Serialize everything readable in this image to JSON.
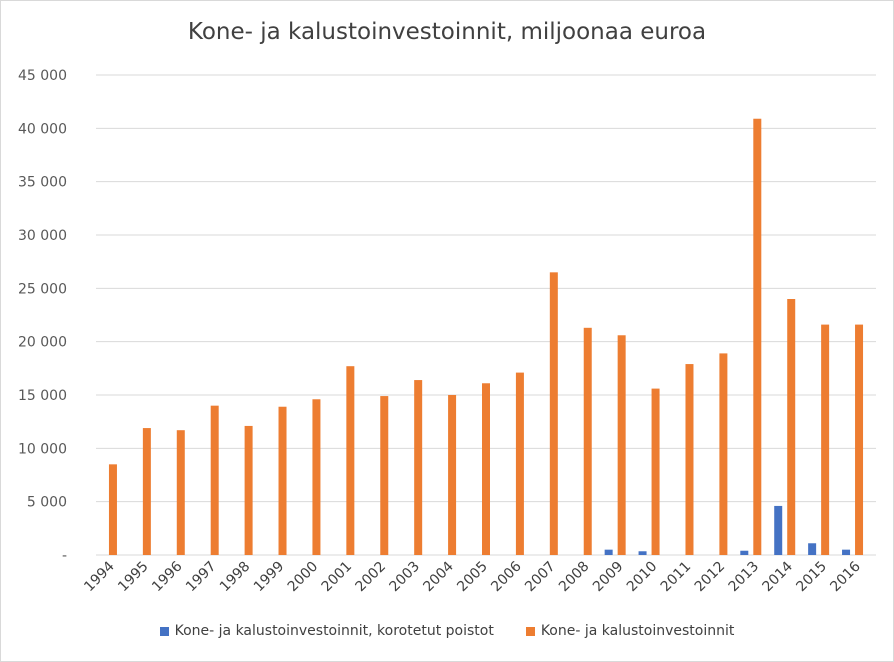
{
  "chart_data": {
    "type": "bar",
    "title": "Kone- ja kalustoinvestoinnit, miljoonaa euroa",
    "xlabel": "",
    "ylabel": "",
    "ylim": [
      0,
      45000
    ],
    "y_ticks": [
      0,
      5000,
      10000,
      15000,
      20000,
      25000,
      30000,
      35000,
      40000,
      45000
    ],
    "y_tick_labels": [
      "-",
      "5 000",
      "10 000",
      "15 000",
      "20 000",
      "25 000",
      "30 000",
      "35 000",
      "40 000",
      "45 000"
    ],
    "grid": true,
    "legend_position": "bottom",
    "categories": [
      "1994",
      "1995",
      "1996",
      "1997",
      "1998",
      "1999",
      "2000",
      "2001",
      "2002",
      "2003",
      "2004",
      "2005",
      "2006",
      "2007",
      "2008",
      "2009",
      "2010",
      "2011",
      "2012",
      "2013",
      "2014",
      "2015",
      "2016"
    ],
    "series": [
      {
        "name": "Kone- ja kalustoinvestoinnit, korotetut poistot",
        "color": "#4472c4",
        "values": [
          0,
          0,
          0,
          0,
          0,
          0,
          0,
          0,
          0,
          0,
          0,
          0,
          0,
          0,
          0,
          500,
          350,
          0,
          0,
          400,
          4600,
          1100,
          500
        ]
      },
      {
        "name": "Kone- ja kalustoinvestoinnit",
        "color": "#ed7d31",
        "values": [
          8500,
          11900,
          11700,
          14000,
          12100,
          13900,
          14600,
          17700,
          14900,
          16400,
          15000,
          16100,
          17100,
          26500,
          21300,
          20600,
          15600,
          17900,
          18900,
          40900,
          24000,
          21600,
          21600
        ]
      }
    ]
  }
}
